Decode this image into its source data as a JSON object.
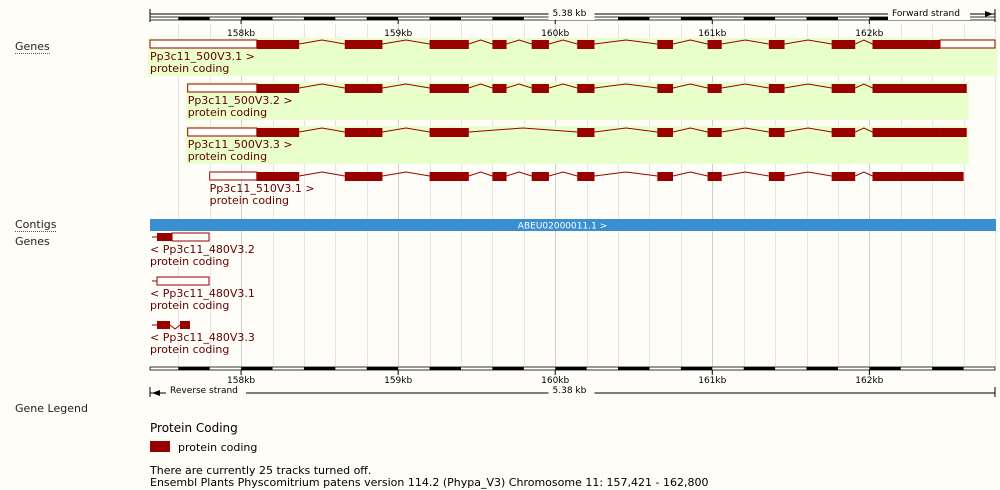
{
  "top_ruler": {
    "span_label": "5.38 kb",
    "strand_label": "Forward strand"
  },
  "bottom_ruler": {
    "span_label": "5.38 kb",
    "strand_label": "Reverse strand"
  },
  "ticks": [
    {
      "kb": 158,
      "label": "158kb"
    },
    {
      "kb": 159,
      "label": "159kb"
    },
    {
      "kb": 160,
      "label": "160kb"
    },
    {
      "kb": 161,
      "label": "161kb"
    },
    {
      "kb": 162,
      "label": "162kb"
    }
  ],
  "track_labels": {
    "genes_forward": "Genes",
    "contigs": "Contigs",
    "genes_reverse": "Genes",
    "gene_legend": "Gene Legend"
  },
  "contig": {
    "label": "ABEU02000011.1 >"
  },
  "forward_transcripts": [
    {
      "name": "Pp3c11_500V3.1 >",
      "biotype": "protein coding",
      "highlighted": true,
      "span_kb": [
        157.42,
        162.8
      ],
      "utr_left_end_kb": 158.1,
      "utr_right_start_kb": 162.45,
      "exons_kb": [
        [
          157.42,
          158.1
        ],
        [
          158.1,
          158.37
        ],
        [
          158.66,
          158.9
        ],
        [
          159.2,
          159.45
        ],
        [
          159.6,
          159.69
        ],
        [
          159.85,
          159.96
        ],
        [
          160.14,
          160.25
        ],
        [
          160.65,
          160.75
        ],
        [
          160.97,
          161.06
        ],
        [
          161.36,
          161.46
        ],
        [
          161.76,
          161.91
        ],
        [
          162.02,
          162.45
        ],
        [
          162.45,
          162.8
        ]
      ]
    },
    {
      "name": "Pp3c11_500V3.2 >",
      "biotype": "protein coding",
      "highlighted": true,
      "span_kb": [
        157.66,
        162.62
      ],
      "utr_left_end_kb": 158.1,
      "utr_right_start_kb": 162.54,
      "exons_kb": [
        [
          157.66,
          158.1
        ],
        [
          158.1,
          158.37
        ],
        [
          158.66,
          158.9
        ],
        [
          159.2,
          159.45
        ],
        [
          159.6,
          159.69
        ],
        [
          159.85,
          159.96
        ],
        [
          160.14,
          160.25
        ],
        [
          160.65,
          160.75
        ],
        [
          160.97,
          161.06
        ],
        [
          161.36,
          161.46
        ],
        [
          161.76,
          161.91
        ],
        [
          162.02,
          162.45
        ],
        [
          162.45,
          162.62
        ]
      ]
    },
    {
      "name": "Pp3c11_500V3.3 >",
      "biotype": "protein coding",
      "highlighted": true,
      "span_kb": [
        157.66,
        162.62
      ],
      "utr_left_end_kb": 158.1,
      "utr_right_start_kb": 162.54,
      "exons_kb": [
        [
          157.66,
          158.1
        ],
        [
          158.1,
          158.37
        ],
        [
          158.66,
          158.9
        ],
        [
          159.2,
          159.45
        ],
        [
          160.14,
          160.25
        ],
        [
          160.65,
          160.75
        ],
        [
          160.97,
          161.06
        ],
        [
          161.36,
          161.46
        ],
        [
          161.76,
          161.91
        ],
        [
          162.02,
          162.45
        ],
        [
          162.45,
          162.62
        ]
      ]
    },
    {
      "name": "Pp3c11_510V3.1 >",
      "biotype": "protein coding",
      "highlighted": false,
      "span_kb": [
        157.8,
        162.6
      ],
      "utr_left_end_kb": 158.1,
      "utr_right_start_kb": 162.54,
      "exons_kb": [
        [
          157.8,
          158.1
        ],
        [
          158.1,
          158.37
        ],
        [
          158.66,
          158.9
        ],
        [
          159.2,
          159.45
        ],
        [
          159.6,
          159.69
        ],
        [
          159.85,
          159.96
        ],
        [
          160.14,
          160.25
        ],
        [
          160.65,
          160.75
        ],
        [
          160.97,
          161.06
        ],
        [
          161.36,
          161.46
        ],
        [
          161.76,
          161.91
        ],
        [
          162.02,
          162.45
        ],
        [
          162.45,
          162.6
        ]
      ]
    }
  ],
  "reverse_transcripts": [
    {
      "name": "< Pp3c11_480V3.2",
      "biotype": "protein coding"
    },
    {
      "name": "< Pp3c11_480V3.1",
      "biotype": "protein coding"
    },
    {
      "name": "< Pp3c11_480V3.3",
      "biotype": "protein coding"
    }
  ],
  "legend": {
    "heading": "Protein Coding",
    "item": "protein coding",
    "color": "#990000"
  },
  "footer": {
    "tracks_off": "There are currently 25 tracks turned off.",
    "version": "Ensembl Plants Physcomitrium patens version 114.2 (Phypa_V3) Chromosome 11: 157,421 - 162,800"
  },
  "colors": {
    "exon": "#990000",
    "highlight": "#e8ffcc",
    "contig": "#3a8fd0",
    "gridline": "#e5e5e5"
  }
}
